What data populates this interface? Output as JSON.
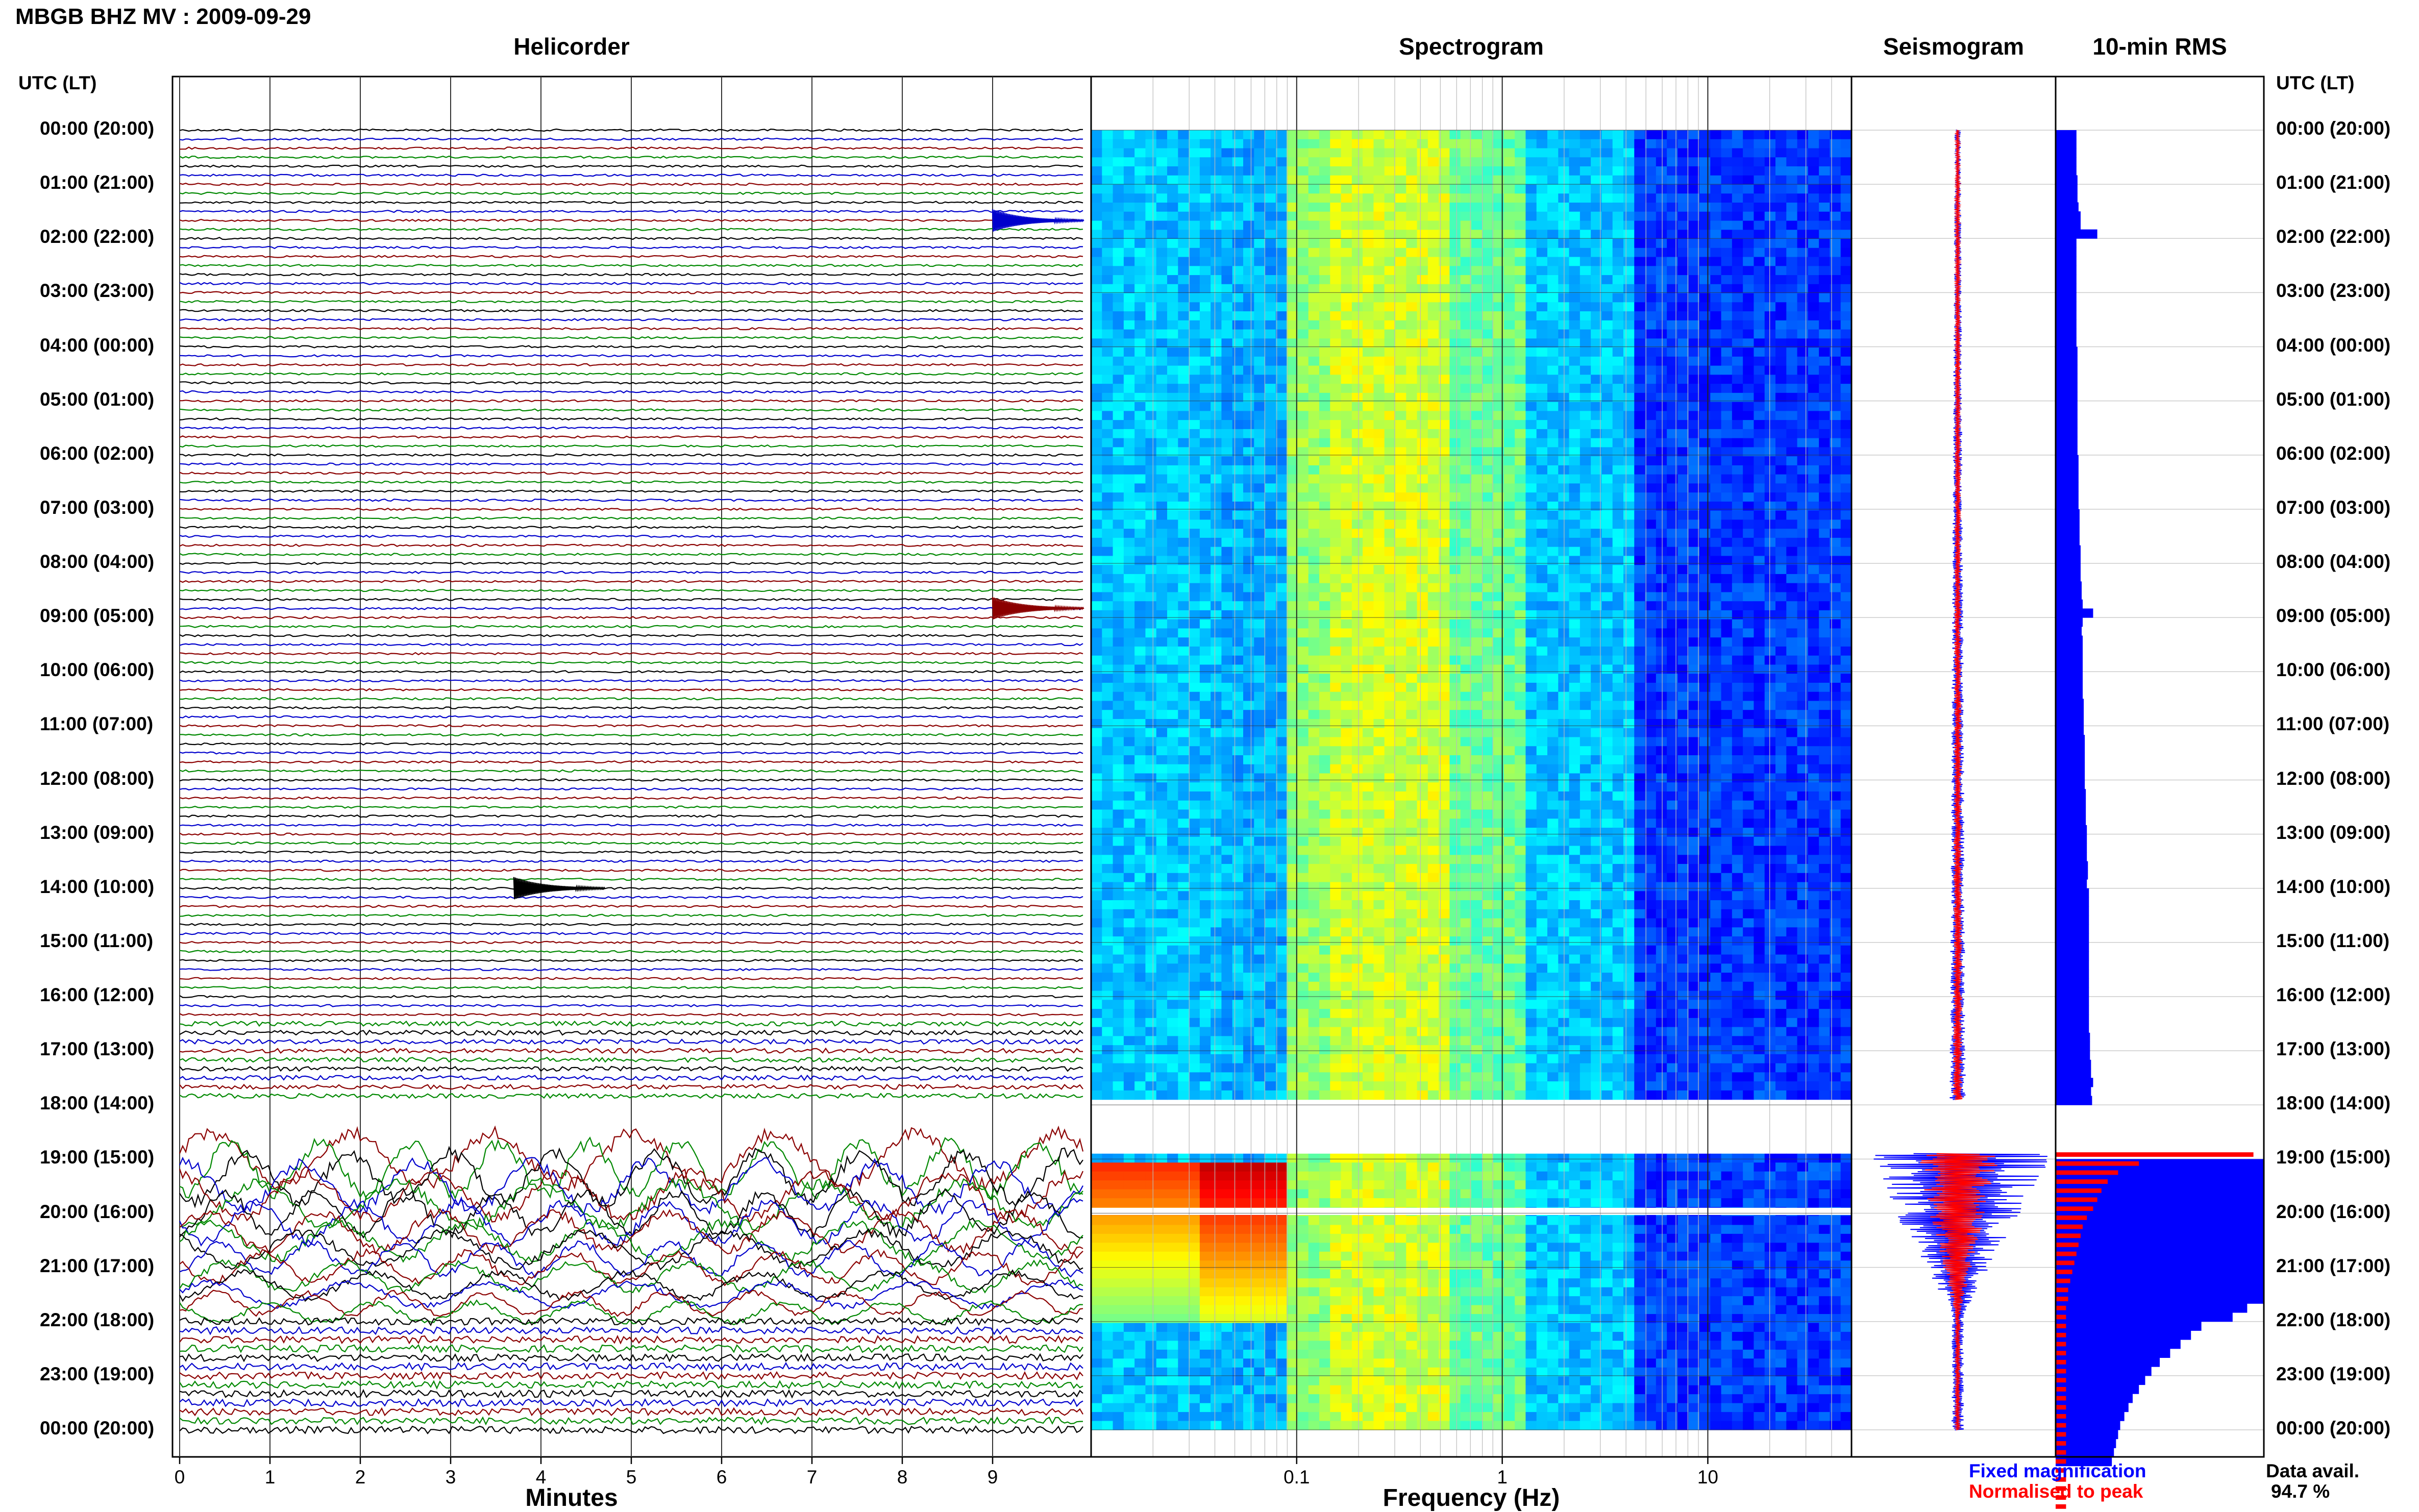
{
  "header": {
    "station_title": "MBGB BHZ MV : 2009-09-29",
    "utc_label_left": "UTC (LT)",
    "utc_label_right": "UTC (LT)"
  },
  "panels": {
    "helicorder": "Helicorder",
    "spectrogram": "Spectrogram",
    "seismogram": "Seismogram",
    "rms": "10-min RMS"
  },
  "axes": {
    "minutes_title": "Minutes",
    "frequency_title": "Frequency (Hz)"
  },
  "legend": {
    "fixed": "Fixed magnification",
    "normalised": "Normalised to peak",
    "fixed_color": "#0000ff",
    "normalised_color": "#ff0000"
  },
  "data_availability": {
    "label": "Data avail.",
    "value": "94.7 %"
  },
  "chart_data": [
    {
      "type": "line",
      "name": "helicorder",
      "title": "Helicorder",
      "xlabel": "Minutes",
      "x_ticks": [
        0,
        1,
        2,
        3,
        4,
        5,
        6,
        7,
        8,
        9
      ],
      "xlim": [
        0,
        10
      ],
      "time_labels": [
        "00:00 (20:00)",
        "01:00 (21:00)",
        "02:00 (22:00)",
        "03:00 (23:00)",
        "04:00 (00:00)",
        "05:00 (01:00)",
        "06:00 (02:00)",
        "07:00 (03:00)",
        "08:00 (04:00)",
        "09:00 (05:00)",
        "10:00 (06:00)",
        "11:00 (07:00)",
        "12:00 (08:00)",
        "13:00 (09:00)",
        "14:00 (10:00)",
        "15:00 (11:00)",
        "16:00 (12:00)",
        "17:00 (13:00)",
        "18:00 (14:00)",
        "19:00 (15:00)",
        "20:00 (16:00)",
        "21:00 (17:00)",
        "22:00 (18:00)",
        "23:00 (19:00)",
        "00:00 (20:00)"
      ],
      "lines_per_hour": 6,
      "trace_colors": [
        "#000000",
        "#0000cc",
        "#8b0000",
        "#008800"
      ],
      "data_gap_hours": [
        17.9,
        18.9
      ],
      "events": [
        {
          "hour": 1.67,
          "minute": 9.0,
          "note": "blue burst"
        },
        {
          "hour": 8.83,
          "minute": 9.0,
          "note": "red event"
        },
        {
          "hour": 14.0,
          "minute": 3.7,
          "note": "black event"
        }
      ]
    },
    {
      "type": "heatmap",
      "name": "spectrogram",
      "title": "Spectrogram",
      "xlabel": "Frequency (Hz)",
      "x_scale": "log",
      "x_ticks": [
        0.1,
        1,
        10
      ],
      "xlim": [
        0.01,
        50
      ],
      "colormap": "jet"
    },
    {
      "type": "line",
      "name": "seismogram",
      "title": "Seismogram",
      "series": [
        {
          "name": "Fixed magnification",
          "color": "#0000ff"
        },
        {
          "name": "Normalised to peak",
          "color": "#ff0000"
        }
      ]
    },
    {
      "type": "bar",
      "name": "rms",
      "title": "10-min RMS",
      "orientation": "horizontal",
      "series": [
        {
          "name": "Fixed magnification",
          "color": "#0000ff",
          "values": [
            1.0,
            1.0,
            1.0,
            1.0,
            1.0,
            1.05,
            1.05,
            1.05,
            1.1,
            1.2,
            1.2,
            2.0,
            1.0,
            1.0,
            1.0,
            1.0,
            1.0,
            1.0,
            1.0,
            1.0,
            1.0,
            1.0,
            1.0,
            1.0,
            1.05,
            1.05,
            1.05,
            1.05,
            1.05,
            1.05,
            1.05,
            1.05,
            1.05,
            1.05,
            1.05,
            1.05,
            1.1,
            1.1,
            1.1,
            1.1,
            1.1,
            1.1,
            1.15,
            1.15,
            1.15,
            1.15,
            1.2,
            1.2,
            1.2,
            1.2,
            1.25,
            1.25,
            1.3,
            1.8,
            1.3,
            1.25,
            1.3,
            1.3,
            1.3,
            1.3,
            1.3,
            1.3,
            1.3,
            1.35,
            1.35,
            1.35,
            1.35,
            1.4,
            1.4,
            1.4,
            1.4,
            1.4,
            1.4,
            1.45,
            1.45,
            1.45,
            1.45,
            1.5,
            1.5,
            1.5,
            1.5,
            1.55,
            1.55,
            1.5,
            1.6,
            1.6,
            1.6,
            1.6,
            1.6,
            1.6,
            1.6,
            1.6,
            1.6,
            1.6,
            1.6,
            1.6,
            1.6,
            1.6,
            1.6,
            1.6,
            1.65,
            1.65,
            1.65,
            1.7,
            1.7,
            1.8,
            1.7,
            1.75,
            null,
            null,
            null,
            null,
            null,
            null,
            10,
            10,
            10,
            10,
            10,
            10,
            10,
            10,
            10,
            10,
            10,
            10,
            10,
            10,
            10,
            10,
            9.2,
            8.5,
            7.0,
            6.5,
            6.0,
            5.5,
            5.0,
            4.6,
            4.3,
            4.0,
            3.7,
            3.5,
            3.3,
            3.1,
            3.0,
            2.9,
            2.8,
            2.7
          ]
        },
        {
          "name": "Normalised to peak",
          "color": "#ff0000",
          "values": [
            9.5,
            4.0,
            3.0,
            2.5,
            2.2,
            2.0,
            1.8,
            1.5,
            1.3,
            1.2,
            1.1,
            1.0,
            0.9,
            0.8,
            0.7,
            0.6,
            0.6,
            0.5,
            0.5,
            0.5,
            0.5,
            0.5,
            0.5,
            0.5,
            0.5,
            0.5,
            0.5,
            0.5,
            0.5,
            0.5,
            0.5,
            0.5,
            0.5,
            0.5,
            0.5,
            0.5,
            0.5,
            0.5,
            0.5,
            0.5
          ]
        }
      ],
      "xlim": [
        0,
        10
      ]
    }
  ]
}
